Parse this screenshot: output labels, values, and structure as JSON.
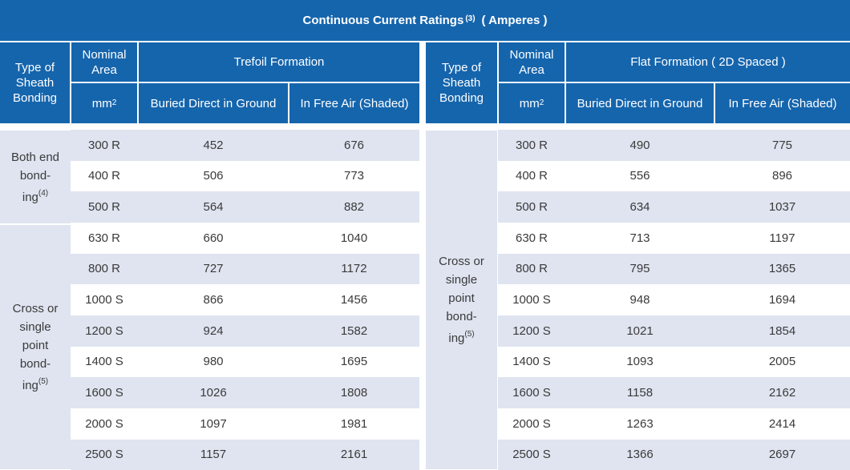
{
  "title": {
    "text": "Continuous Current Ratings",
    "note": "(3)",
    "unit": "( Amperes )"
  },
  "headers": {
    "type_line1": "Type of",
    "type_line2": "Sheath",
    "type_line3": "Bonding",
    "nominal_line1": "Nominal",
    "nominal_line2": "Area",
    "mm": "mm",
    "mm_sup": "2",
    "trefoil": "Trefoil Formation",
    "flat": "Flat Formation ( 2D Spaced )",
    "buried": "Buried Direct in Ground",
    "free_air": "In Free Air (Shaded)"
  },
  "groups": {
    "both_end": {
      "l1": "Both end",
      "l2": "bond-",
      "l3": "ing",
      "sup": "(4)"
    },
    "cross": {
      "l1": "Cross or",
      "l2": "single",
      "l3": "point",
      "l4": "bond-",
      "l5": "ing",
      "sup": "(5)"
    }
  },
  "trefoil_rows": [
    {
      "area": "300 R",
      "buried": "452",
      "air": "676"
    },
    {
      "area": "400 R",
      "buried": "506",
      "air": "773"
    },
    {
      "area": "500 R",
      "buried": "564",
      "air": "882"
    },
    {
      "area": "630 R",
      "buried": "660",
      "air": "1040"
    },
    {
      "area": "800 R",
      "buried": "727",
      "air": "1172"
    },
    {
      "area": "1000 S",
      "buried": "866",
      "air": "1456"
    },
    {
      "area": "1200 S",
      "buried": "924",
      "air": "1582"
    },
    {
      "area": "1400 S",
      "buried": "980",
      "air": "1695"
    },
    {
      "area": "1600 S",
      "buried": "1026",
      "air": "1808"
    },
    {
      "area": "2000 S",
      "buried": "1097",
      "air": "1981"
    },
    {
      "area": "2500 S",
      "buried": "1157",
      "air": "2161"
    }
  ],
  "flat_rows": [
    {
      "area": "300 R",
      "buried": "490",
      "air": "775"
    },
    {
      "area": "400 R",
      "buried": "556",
      "air": "896"
    },
    {
      "area": "500 R",
      "buried": "634",
      "air": "1037"
    },
    {
      "area": "630 R",
      "buried": "713",
      "air": "1197"
    },
    {
      "area": "800 R",
      "buried": "795",
      "air": "1365"
    },
    {
      "area": "1000 S",
      "buried": "948",
      "air": "1694"
    },
    {
      "area": "1200 S",
      "buried": "1021",
      "air": "1854"
    },
    {
      "area": "1400 S",
      "buried": "1093",
      "air": "2005"
    },
    {
      "area": "1600 S",
      "buried": "1158",
      "air": "2162"
    },
    {
      "area": "2000 S",
      "buried": "1263",
      "air": "2414"
    },
    {
      "area": "2500 S",
      "buried": "1366",
      "air": "2697"
    }
  ]
}
